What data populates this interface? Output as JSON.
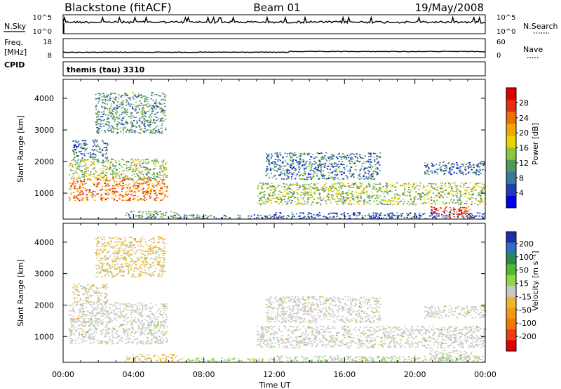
{
  "header": {
    "station": "Blackstone (fitACF)",
    "beam": "Beam 01",
    "date": "19/May/2008"
  },
  "noise_panel": {
    "left_label": "N.Sky",
    "right_label": "N.Search",
    "left_ticks": [
      "10^5",
      "10^0"
    ],
    "right_ticks": [
      "10^5",
      "10^0"
    ]
  },
  "freq_panel": {
    "left_label_line1": "Freq.",
    "left_label_line2": "[MHz]",
    "right_label": "Nave",
    "left_ticks": [
      "18",
      "8"
    ],
    "right_ticks": [
      "60",
      "0"
    ]
  },
  "cpid": {
    "label": "CPID",
    "value": "themis (tau) 3310"
  },
  "chart_data": [
    {
      "type": "heatmap",
      "panel": "power",
      "ylabel": "Slant Range [km]",
      "xlabel": "Time UT",
      "x_ticks": [
        "00:00",
        "04:00",
        "08:00",
        "12:00",
        "16:00",
        "20:00",
        "00:00"
      ],
      "x_range_hours": [
        0,
        24
      ],
      "y_ticks": [
        1000,
        2000,
        3000,
        4000
      ],
      "ylim": [
        180,
        4600
      ],
      "colorbar": {
        "label": "Power [dB]",
        "tick_labels": [
          "4",
          "8",
          "12",
          "16",
          "20",
          "24",
          "28"
        ],
        "range": [
          0,
          32
        ],
        "colors": [
          "#0000ee",
          "#1e3fb0",
          "#3a7a9e",
          "#4f9a58",
          "#8ec43e",
          "#e8d400",
          "#f5a500",
          "#f06e00",
          "#e03010",
          "#e00000"
        ]
      },
      "echo_regions": [
        {
          "t0": 0.3,
          "t1": 5.9,
          "r0": 780,
          "r1": 1500,
          "level": 24
        },
        {
          "t0": 0.3,
          "t1": 5.9,
          "r0": 1450,
          "r1": 2100,
          "level": 14
        },
        {
          "t0": 1.8,
          "t1": 5.8,
          "r0": 2900,
          "r1": 4200,
          "level": 10
        },
        {
          "t0": 0.5,
          "t1": 2.5,
          "r0": 2100,
          "r1": 2700,
          "level": 8
        },
        {
          "t0": 3.5,
          "t1": 6.5,
          "r0": 200,
          "r1": 450,
          "level": 10
        },
        {
          "t0": 6.5,
          "t1": 12.0,
          "r0": 200,
          "r1": 330,
          "level": 8
        },
        {
          "t0": 11.0,
          "t1": 24.0,
          "r0": 650,
          "r1": 1350,
          "level": 14
        },
        {
          "t0": 11.5,
          "t1": 18.0,
          "r0": 1450,
          "r1": 2300,
          "level": 8
        },
        {
          "t0": 20.5,
          "t1": 24.0,
          "r0": 1600,
          "r1": 2000,
          "level": 8
        },
        {
          "t0": 20.8,
          "t1": 23.2,
          "r0": 250,
          "r1": 600,
          "level": 28
        },
        {
          "t0": 12.0,
          "t1": 24.0,
          "r0": 200,
          "r1": 400,
          "level": 6
        }
      ]
    },
    {
      "type": "heatmap",
      "panel": "velocity",
      "ylabel": "Slant Range [km]",
      "xlabel": "Time UT",
      "x_ticks": [
        "00:00",
        "04:00",
        "08:00",
        "12:00",
        "16:00",
        "20:00",
        "00:00"
      ],
      "x_range_hours": [
        0,
        24
      ],
      "y_ticks": [
        1000,
        2000,
        3000,
        4000
      ],
      "ylim": [
        180,
        4600
      ],
      "colorbar": {
        "label": "Velocity [m s⁻¹]",
        "tick_labels": [
          "200",
          "100",
          "50",
          "15",
          "-15",
          "-50",
          "-100",
          "-200"
        ],
        "range": [
          -250,
          250
        ],
        "colors": [
          "#1e2fa8",
          "#2f6fc0",
          "#2a8a50",
          "#55b830",
          "#8ed848",
          "#c8c8c8",
          "#e8b830",
          "#f09a10",
          "#f07a00",
          "#f03c10",
          "#e00000"
        ]
      },
      "echo_regions": [
        {
          "t0": 0.3,
          "t1": 5.9,
          "r0": 780,
          "r1": 1500,
          "level": 0
        },
        {
          "t0": 0.3,
          "t1": 5.9,
          "r0": 1450,
          "r1": 2100,
          "level": 0
        },
        {
          "t0": 1.8,
          "t1": 5.8,
          "r0": 2900,
          "r1": 4200,
          "level": -30
        },
        {
          "t0": 0.5,
          "t1": 2.5,
          "r0": 2100,
          "r1": 2700,
          "level": -20
        },
        {
          "t0": 3.5,
          "t1": 6.5,
          "r0": 200,
          "r1": 450,
          "level": -40
        },
        {
          "t0": 6.5,
          "t1": 12.0,
          "r0": 200,
          "r1": 330,
          "level": 40
        },
        {
          "t0": 11.0,
          "t1": 24.0,
          "r0": 650,
          "r1": 1350,
          "level": 0
        },
        {
          "t0": 11.5,
          "t1": 18.0,
          "r0": 1450,
          "r1": 2300,
          "level": 0
        },
        {
          "t0": 20.5,
          "t1": 24.0,
          "r0": 1600,
          "r1": 2000,
          "level": 0
        },
        {
          "t0": 20.8,
          "t1": 23.2,
          "r0": 250,
          "r1": 600,
          "level": 0
        },
        {
          "t0": 12.0,
          "t1": 24.0,
          "r0": 200,
          "r1": 400,
          "level": 20
        }
      ]
    }
  ]
}
